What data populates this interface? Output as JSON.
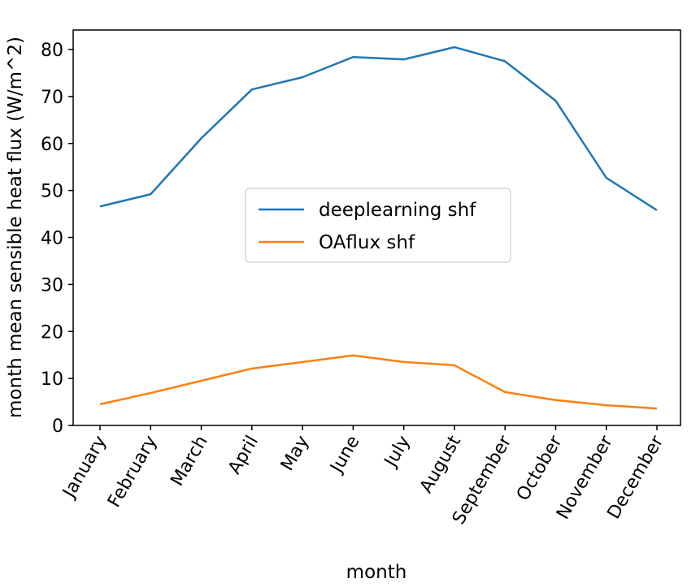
{
  "chart_data": {
    "type": "line",
    "categories": [
      "January",
      "February",
      "March",
      "April",
      "May",
      "June",
      "July",
      "August",
      "September",
      "October",
      "November",
      "December"
    ],
    "series": [
      {
        "name": "deeplearning shf",
        "color": "#1f77b4",
        "values": [
          46.6,
          49.2,
          61.1,
          71.5,
          74.1,
          78.4,
          77.9,
          80.5,
          77.5,
          69.1,
          52.7,
          45.8
        ]
      },
      {
        "name": "OAflux shf",
        "color": "#ff7f0e",
        "values": [
          4.5,
          6.9,
          9.5,
          12.1,
          13.5,
          14.9,
          13.5,
          12.8,
          7.1,
          5.4,
          4.3,
          3.6
        ]
      }
    ],
    "xlabel": "month",
    "ylabel": "month mean sensible heat flux (W/m^2)",
    "ylim": [
      0,
      84
    ],
    "yticks": [
      0,
      10,
      20,
      30,
      40,
      50,
      60,
      70,
      80
    ],
    "grid": false,
    "legend_position": "center"
  }
}
